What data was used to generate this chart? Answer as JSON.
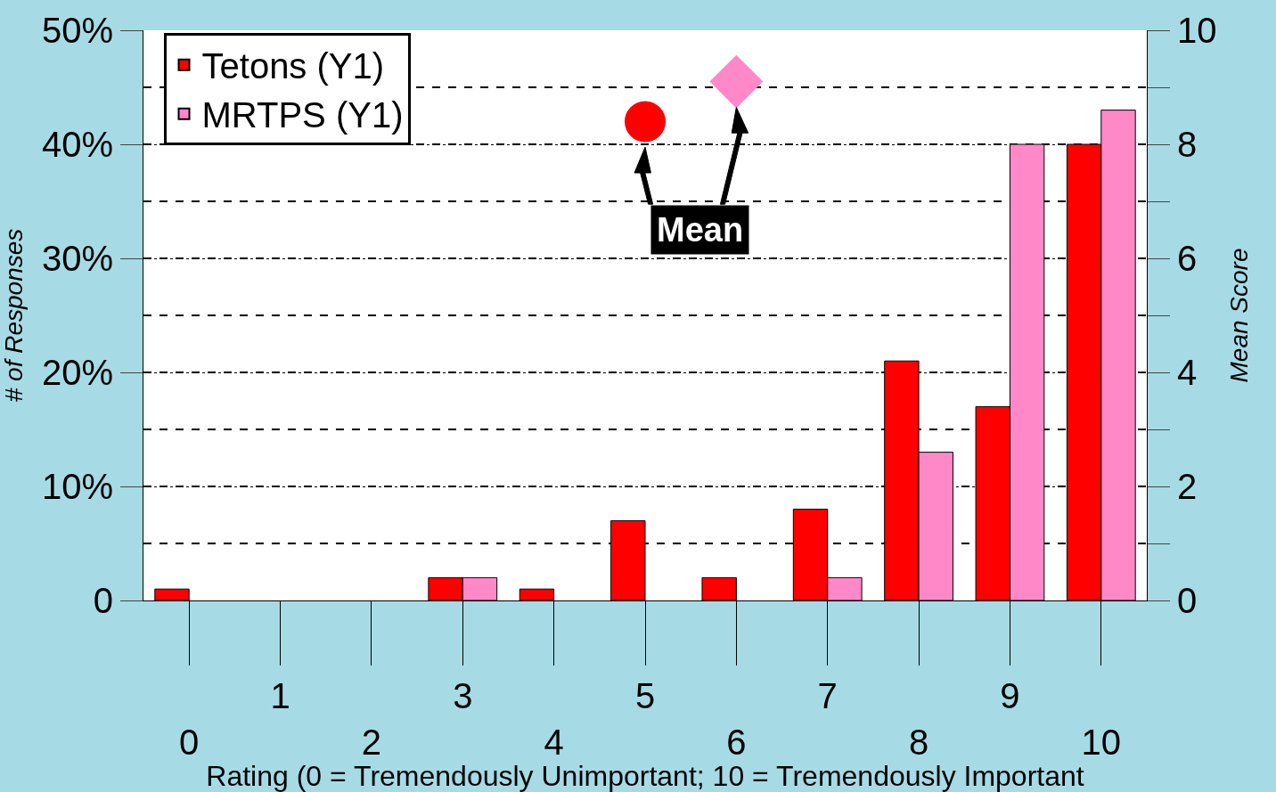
{
  "chart_data": {
    "type": "bar",
    "xlabel": "Rating (0 = Tremendously Unimportant; 10 = Tremendously Important",
    "ylabel": "# of Responses",
    "y2label": "Mean Score",
    "categories": [
      "0",
      "1",
      "2",
      "3",
      "4",
      "5",
      "6",
      "7",
      "8",
      "9",
      "10"
    ],
    "series": [
      {
        "name": "Tetons (Y1)",
        "color": "#ff0000",
        "values": [
          1,
          0,
          0,
          2,
          1,
          7,
          2,
          8,
          21,
          17,
          40
        ]
      },
      {
        "name": "MRTPS (Y1)",
        "color": "#ff88c8",
        "values": [
          0,
          0,
          0,
          2,
          0,
          0,
          0,
          2,
          13,
          40,
          43
        ]
      },
      {
        "type": "scatter",
        "axis": "y2",
        "x": [
          "5"
        ],
        "values": [
          8.4
        ],
        "color": "#ff0000",
        "marker": "circle"
      },
      {
        "type": "scatter",
        "axis": "y2",
        "x": [
          "6"
        ],
        "values": [
          9.1
        ],
        "color": "#ff88c8",
        "marker": "diamond"
      }
    ],
    "ylim": [
      0,
      50
    ],
    "yticks": [
      0,
      {
        "value": 10,
        "label": "10%"
      },
      {
        "value": 20,
        "label": "20%"
      },
      {
        "value": 30,
        "label": "30%"
      },
      {
        "value": 40,
        "label": "40%"
      },
      {
        "value": 50,
        "label": "50%"
      }
    ],
    "y2lim": [
      0,
      10
    ],
    "y2ticks": [
      0,
      {
        "value": 1,
        "label": null
      },
      2,
      {
        "value": 3,
        "label": null
      },
      4,
      {
        "value": 5,
        "label": null
      },
      6,
      {
        "value": 7,
        "label": null
      },
      8,
      {
        "value": 9,
        "label": null
      },
      10
    ],
    "grid": true,
    "legend": "top left",
    "annotations": [
      "Mean"
    ]
  }
}
